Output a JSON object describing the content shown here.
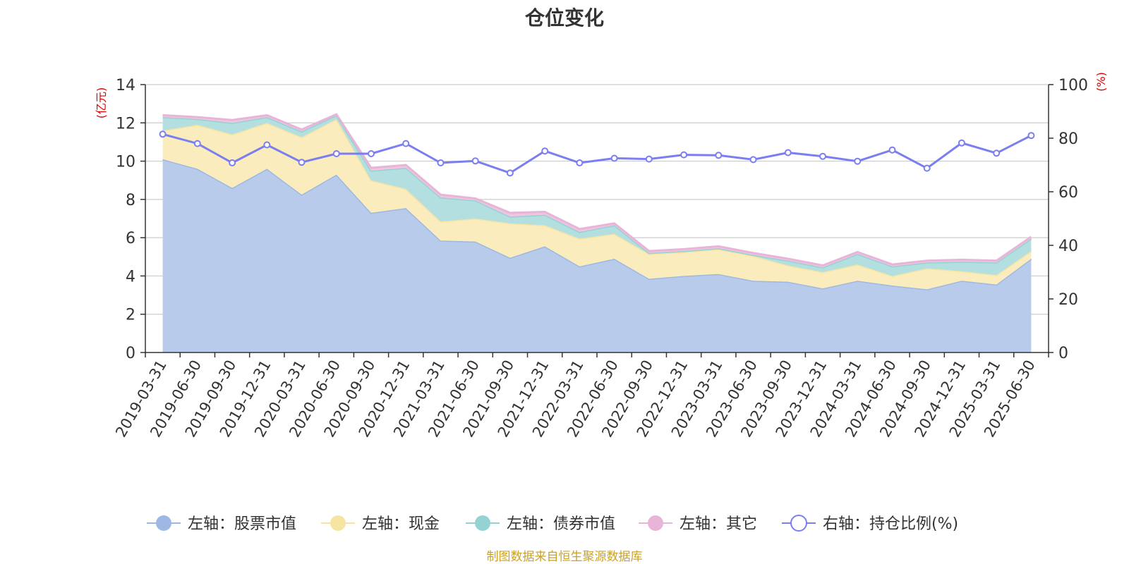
{
  "footer": "制图数据来自恒生聚源数据库",
  "chart_data": {
    "type": "area",
    "title": "仓位变化",
    "left_axis": {
      "label": "(亿元)",
      "range": [
        0,
        14
      ],
      "ticks": [
        0,
        2,
        4,
        6,
        8,
        10,
        12,
        14
      ]
    },
    "right_axis": {
      "label": "(%)",
      "range": [
        0,
        100
      ],
      "ticks": [
        0,
        20,
        40,
        60,
        80,
        100
      ]
    },
    "grid": true,
    "legend_position": "bottom",
    "stacked": true,
    "categories": [
      "2019-03-31",
      "2019-06-30",
      "2019-09-30",
      "2019-12-31",
      "2020-03-31",
      "2020-06-30",
      "2020-09-30",
      "2020-12-31",
      "2021-03-31",
      "2021-06-30",
      "2021-09-30",
      "2021-12-31",
      "2022-03-31",
      "2022-06-30",
      "2022-09-30",
      "2022-12-31",
      "2023-03-31",
      "2023-06-30",
      "2023-09-30",
      "2023-12-31",
      "2024-03-31",
      "2024-06-30",
      "2024-09-30",
      "2024-12-31",
      "2025-03-31",
      "2025-06-30"
    ],
    "series": [
      {
        "name": "左轴：股票市值",
        "axis": "left",
        "color": "#9db8e4",
        "fill": "#b8cbea",
        "values": [
          10.1,
          9.6,
          8.6,
          9.6,
          8.25,
          9.3,
          7.3,
          7.55,
          5.85,
          5.8,
          4.95,
          5.55,
          4.5,
          4.9,
          3.85,
          4.0,
          4.1,
          3.75,
          3.7,
          3.35,
          3.75,
          3.5,
          3.3,
          3.75,
          3.55,
          4.9
        ]
      },
      {
        "name": "左轴：现金",
        "axis": "left",
        "color": "#f6e4a2",
        "fill": "#faecbd",
        "values": [
          1.5,
          2.3,
          2.8,
          2.4,
          3.0,
          2.9,
          1.7,
          1.0,
          1.0,
          1.2,
          1.8,
          1.1,
          1.45,
          1.3,
          1.3,
          1.25,
          1.3,
          1.3,
          0.85,
          0.85,
          0.85,
          0.5,
          1.1,
          0.5,
          0.5,
          0.4
        ]
      },
      {
        "name": "左轴：债券市值",
        "axis": "left",
        "color": "#94d3d3",
        "fill": "#b4dfe0",
        "values": [
          0.7,
          0.3,
          0.6,
          0.3,
          0.3,
          0.2,
          0.5,
          1.1,
          1.25,
          0.95,
          0.35,
          0.55,
          0.35,
          0.45,
          0.05,
          0.05,
          0.05,
          0.05,
          0.25,
          0.25,
          0.55,
          0.5,
          0.3,
          0.5,
          0.65,
          0.65
        ]
      },
      {
        "name": "左轴：其它",
        "axis": "left",
        "color": "#e8b4d8",
        "fill": "#eec6e0",
        "values": [
          0.1,
          0.1,
          0.15,
          0.1,
          0.1,
          0.05,
          0.15,
          0.15,
          0.15,
          0.1,
          0.2,
          0.15,
          0.15,
          0.1,
          0.1,
          0.1,
          0.1,
          0.1,
          0.1,
          0.1,
          0.1,
          0.1,
          0.1,
          0.1,
          0.1,
          0.1
        ]
      },
      {
        "name": "右轴：持仓比例(%)",
        "axis": "right",
        "type": "line",
        "color": "#7b7ef0",
        "values": [
          81.5,
          78.0,
          70.8,
          77.5,
          71.0,
          74.2,
          74.2,
          78.0,
          70.8,
          71.5,
          67.0,
          75.2,
          70.8,
          72.5,
          72.2,
          73.8,
          73.6,
          72.0,
          74.6,
          73.2,
          71.4,
          75.6,
          68.8,
          78.2,
          74.4,
          81.0
        ]
      }
    ]
  }
}
